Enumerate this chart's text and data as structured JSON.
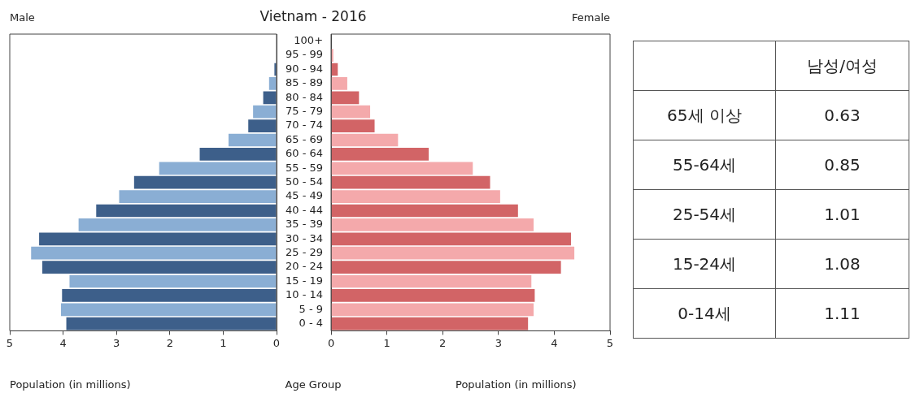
{
  "chart_data": [
    {
      "type": "bar",
      "orientation": "horizontal",
      "title": "Vietnam - 2016",
      "annotations": [
        "Male"
      ],
      "xlabel": "Population (in millions)",
      "categories": [
        null,
        null,
        null,
        null,
        null,
        null,
        null,
        null,
        null,
        null,
        null,
        null,
        null,
        null,
        null,
        null,
        null,
        null,
        null,
        null,
        null
      ],
      "values": [
        null,
        null,
        0.04,
        0.14,
        0.25,
        0.44,
        0.53,
        0.9,
        1.44,
        2.2,
        2.67,
        2.95,
        3.38,
        3.71,
        4.45,
        4.6,
        4.39,
        3.88,
        4.02,
        4.04,
        3.94
      ],
      "colors": [
        "#3d5f8a",
        "#8aaed4",
        "#3d5f8a",
        "#8aaed4",
        "#3d5f8a",
        "#8aaed4",
        "#3d5f8a",
        "#8aaed4",
        "#3d5f8a",
        "#8aaed4",
        "#3d5f8a",
        "#8aaed4",
        "#3d5f8a",
        "#8aaed4",
        "#3d5f8a",
        "#8aaed4",
        "#3d5f8a",
        "#8aaed4",
        "#3d5f8a",
        "#8aaed4",
        "#3d5f8a"
      ],
      "xlim": [
        5,
        0
      ],
      "xticks": [
        5,
        4,
        3,
        2,
        1,
        0
      ],
      "tick_labels": "x"
    },
    {
      "type": "bar",
      "orientation": "horizontal",
      "annotations": [
        "Female"
      ],
      "xlabel": "Population (in millions)",
      "ylabel": "Age Group",
      "categories": [
        "100+",
        "95 - 99",
        "90 - 94",
        "85 - 89",
        "80 - 84",
        "75 - 79",
        "70 - 74",
        "65 - 69",
        "60 - 64",
        "55 - 59",
        "50 - 54",
        "45 - 49",
        "40 - 44",
        "35 - 39",
        "30 - 34",
        "25 - 29",
        "20 - 24",
        "15 - 19",
        "10 - 14",
        "5 - 9",
        "0 - 4"
      ],
      "values": [
        null,
        0.04,
        0.12,
        0.29,
        0.5,
        0.7,
        0.78,
        1.2,
        1.75,
        2.54,
        2.85,
        3.03,
        3.35,
        3.63,
        4.3,
        4.36,
        4.12,
        3.59,
        3.65,
        3.63,
        3.53
      ],
      "colors": [
        "#d26466",
        "#f4a9ab",
        "#d26466",
        "#f4a9ab",
        "#d26466",
        "#f4a9ab",
        "#d26466",
        "#f4a9ab",
        "#d26466",
        "#f4a9ab",
        "#d26466",
        "#f4a9ab",
        "#d26466",
        "#f4a9ab",
        "#d26466",
        "#f4a9ab",
        "#d26466",
        "#f4a9ab",
        "#d26466",
        "#f4a9ab",
        "#d26466"
      ],
      "xlim": [
        0,
        5
      ],
      "xticks": [
        0,
        1,
        2,
        3,
        4,
        5
      ]
    },
    {
      "type": "other",
      "title": "남성/여성",
      "categories": [
        "65세 이상",
        "55-64세",
        "25-54세",
        "15-24세",
        "0-14세"
      ],
      "values": [
        0.63,
        0.85,
        1.01,
        1.08,
        1.11
      ],
      "data_labels": true
    }
  ]
}
